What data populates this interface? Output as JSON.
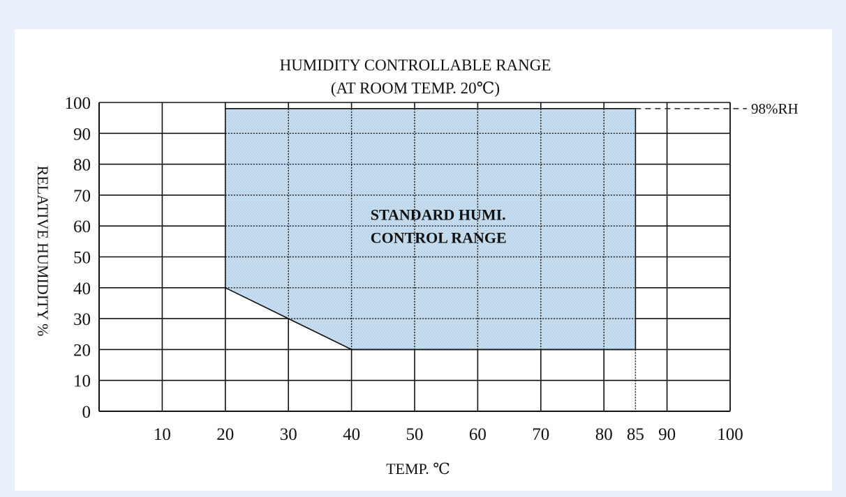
{
  "chart_data": {
    "type": "area",
    "title": "HUMIDITY CONTROLLABLE RANGE",
    "subtitle": "(AT ROOM TEMP. 20℃)",
    "xlabel": "TEMP. ℃",
    "ylabel": "RELATIVE HUMIDITY %",
    "xlim": [
      0,
      100
    ],
    "ylim": [
      0,
      100
    ],
    "grid": true,
    "x_ticks": [
      10,
      20,
      30,
      40,
      50,
      60,
      70,
      80,
      85,
      90,
      100
    ],
    "y_ticks": [
      0,
      10,
      20,
      30,
      40,
      50,
      60,
      70,
      80,
      90,
      100
    ],
    "x_gridlines": [
      10,
      20,
      30,
      40,
      50,
      60,
      70,
      80,
      90,
      100
    ],
    "y_gridlines": [
      10,
      20,
      30,
      40,
      50,
      60,
      70,
      80,
      90,
      100
    ],
    "region": {
      "label_line1": "STANDARD HUMI.",
      "label_line2": "CONTROL RANGE",
      "label_at": [
        43,
        62
      ],
      "color": "#c6dcee",
      "polygon": [
        [
          20,
          98
        ],
        [
          85,
          98
        ],
        [
          85,
          20
        ],
        [
          40,
          20
        ],
        [
          30,
          30
        ],
        [
          20,
          40
        ]
      ]
    },
    "annotation": {
      "text": "98%RH",
      "y": 98
    },
    "marker_line_x": 85
  }
}
